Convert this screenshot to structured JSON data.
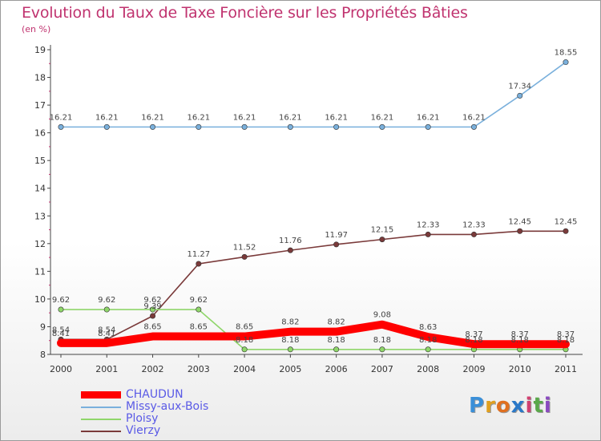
{
  "chart_data": {
    "type": "line",
    "title": "Evolution du Taux de Taxe Foncière sur les Propriétés Bâties",
    "ylabel": "(en %)",
    "xlabel": "",
    "x": [
      "2000",
      "2001",
      "2002",
      "2003",
      "2004",
      "2005",
      "2006",
      "2007",
      "2008",
      "2009",
      "2010",
      "2011"
    ],
    "ylim": [
      8,
      19
    ],
    "yticks": [
      "8",
      "9",
      "10",
      "11",
      "12",
      "13",
      "14",
      "15",
      "16",
      "17",
      "18",
      "19"
    ],
    "grid": false,
    "legend_position": "bottom-left",
    "series": [
      {
        "name": "CHAUDUN",
        "color": "#ff0000",
        "values": [
          8.41,
          8.41,
          8.65,
          8.65,
          8.65,
          8.82,
          8.82,
          9.08,
          8.63,
          8.37,
          8.37,
          8.37
        ],
        "labels": [
          "8.41",
          "8.41",
          "8.65",
          "8.65",
          "8.65",
          "8.82",
          "8.82",
          "9.08",
          "8.63",
          "8.37",
          "8.37",
          "8.37"
        ]
      },
      {
        "name": "Missy-aux-Bois",
        "color": "#7ab0dc",
        "values": [
          16.21,
          16.21,
          16.21,
          16.21,
          16.21,
          16.21,
          16.21,
          16.21,
          16.21,
          16.21,
          17.34,
          18.55
        ],
        "labels": [
          "16.21",
          "16.21",
          "16.21",
          "16.21",
          "16.21",
          "16.21",
          "16.21",
          "16.21",
          "16.21",
          "16.21",
          "17.34",
          "18.55"
        ]
      },
      {
        "name": "Ploisy",
        "color": "#8fd66a",
        "values": [
          9.62,
          9.62,
          9.62,
          9.62,
          8.18,
          8.18,
          8.18,
          8.18,
          8.18,
          8.18,
          8.18,
          8.18
        ],
        "labels": [
          "9.62",
          "9.62",
          "9.62",
          "9.62",
          "8.18",
          "8.18",
          "8.18",
          "8.18",
          "8.18",
          "8.18",
          "8.18",
          "8.18"
        ]
      },
      {
        "name": "Vierzy",
        "color": "#7a3a3a",
        "values": [
          8.54,
          8.54,
          9.39,
          11.27,
          11.52,
          11.76,
          11.97,
          12.15,
          12.33,
          12.33,
          12.45,
          12.45
        ],
        "labels": [
          "8.54",
          "8.54",
          "9.39",
          "11.27",
          "11.52",
          "11.76",
          "11.97",
          "12.15",
          "12.33",
          "12.33",
          "12.45",
          "12.45"
        ]
      }
    ]
  },
  "legend": {
    "items": [
      "CHAUDUN",
      "Missy-aux-Bois",
      "Ploisy",
      "Vierzy"
    ]
  },
  "logo": {
    "letters": [
      "P",
      "r",
      "o",
      "x",
      "i",
      "t",
      "i"
    ]
  }
}
